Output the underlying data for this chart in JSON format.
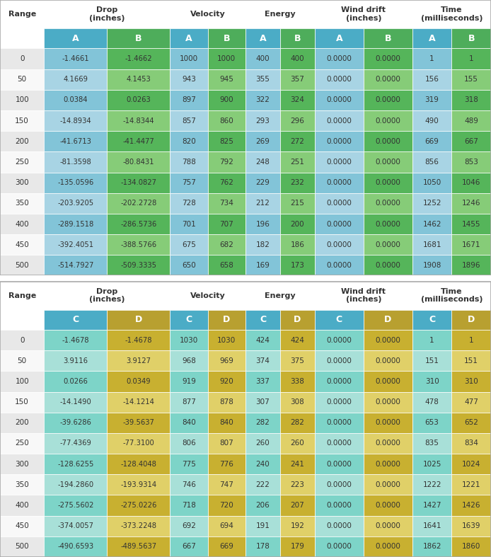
{
  "ranges": [
    0,
    50,
    100,
    150,
    200,
    250,
    300,
    350,
    400,
    450,
    500
  ],
  "table1": {
    "drop_A": [
      -1.4661,
      4.1669,
      0.0384,
      -14.8934,
      -41.6713,
      -81.3598,
      -135.0596,
      -203.9205,
      -289.1518,
      -392.4051,
      -514.7927
    ],
    "drop_B": [
      -1.4662,
      4.1453,
      0.0263,
      -14.8344,
      -41.4477,
      -80.8431,
      -134.0827,
      -202.2728,
      -286.5736,
      -388.5766,
      -509.3335
    ],
    "vel_A": [
      1000,
      943,
      897,
      857,
      820,
      788,
      757,
      728,
      701,
      675,
      650
    ],
    "vel_B": [
      1000,
      945,
      900,
      860,
      825,
      792,
      762,
      734,
      707,
      682,
      658
    ],
    "energy_A": [
      400,
      355,
      322,
      293,
      269,
      248,
      229,
      212,
      196,
      182,
      169
    ],
    "energy_B": [
      400,
      357,
      324,
      296,
      272,
      251,
      232,
      215,
      200,
      186,
      173
    ],
    "wind_A": [
      0.0,
      0.0,
      0.0,
      0.0,
      0.0,
      0.0,
      0.0,
      0.0,
      0.0,
      0.0,
      0.0
    ],
    "wind_B": [
      0.0,
      0.0,
      0.0,
      0.0,
      0.0,
      0.0,
      0.0,
      0.0,
      0.0,
      0.0,
      0.0
    ],
    "time_A": [
      1,
      156,
      319,
      490,
      669,
      856,
      1050,
      1252,
      1462,
      1681,
      1908
    ],
    "time_B": [
      1,
      155,
      318,
      489,
      667,
      853,
      1046,
      1246,
      1455,
      1671,
      1896
    ]
  },
  "table2": {
    "drop_C": [
      -1.4678,
      3.9116,
      0.0266,
      -14.149,
      -39.6286,
      -77.4369,
      -128.6255,
      -194.286,
      -275.5602,
      -374.0057,
      -490.6593
    ],
    "drop_D": [
      -1.4678,
      3.9127,
      0.0349,
      -14.1214,
      -39.5637,
      -77.31,
      -128.4048,
      -193.9314,
      -275.0226,
      -373.2248,
      -489.5637
    ],
    "vel_C": [
      1030,
      968,
      919,
      877,
      840,
      806,
      775,
      746,
      718,
      692,
      667
    ],
    "vel_D": [
      1030,
      969,
      920,
      878,
      840,
      807,
      776,
      747,
      720,
      694,
      669
    ],
    "energy_C": [
      424,
      374,
      337,
      307,
      282,
      260,
      240,
      222,
      206,
      191,
      178
    ],
    "energy_D": [
      424,
      375,
      338,
      308,
      282,
      260,
      241,
      223,
      207,
      192,
      179
    ],
    "wind_C": [
      0.0,
      0.0,
      0.0,
      0.0,
      0.0,
      0.0,
      0.0,
      0.0,
      0.0,
      0.0,
      0.0
    ],
    "wind_D": [
      0.0,
      0.0,
      0.0,
      0.0,
      0.0,
      0.0,
      0.0,
      0.0,
      0.0,
      0.0,
      0.0
    ],
    "time_C": [
      1,
      151,
      310,
      478,
      653,
      835,
      1025,
      1222,
      1427,
      1641,
      1862
    ],
    "time_D": [
      1,
      151,
      310,
      477,
      652,
      834,
      1024,
      1221,
      1426,
      1639,
      1860
    ]
  },
  "color_subheader_A": "#4bacc6",
  "color_subheader_B": "#4ead5b",
  "color_subheader_C": "#4bacc6",
  "color_subheader_D": "#b8a030",
  "col_A_even": "#82c4d8",
  "col_A_odd": "#a8d4e4",
  "col_B_even": "#55b55a",
  "col_B_odd": "#86cc78",
  "col_C_even": "#7dd4c8",
  "col_C_odd": "#a8e0d8",
  "col_D_even": "#c8b030",
  "col_D_odd": "#e0d068",
  "row_even_bg": "#e8e8e8",
  "row_odd_bg": "#f8f8f8",
  "header_bg": "#ffffff",
  "border_color": "#aaaaaa",
  "text_dark": "#333333",
  "text_white": "#ffffff"
}
